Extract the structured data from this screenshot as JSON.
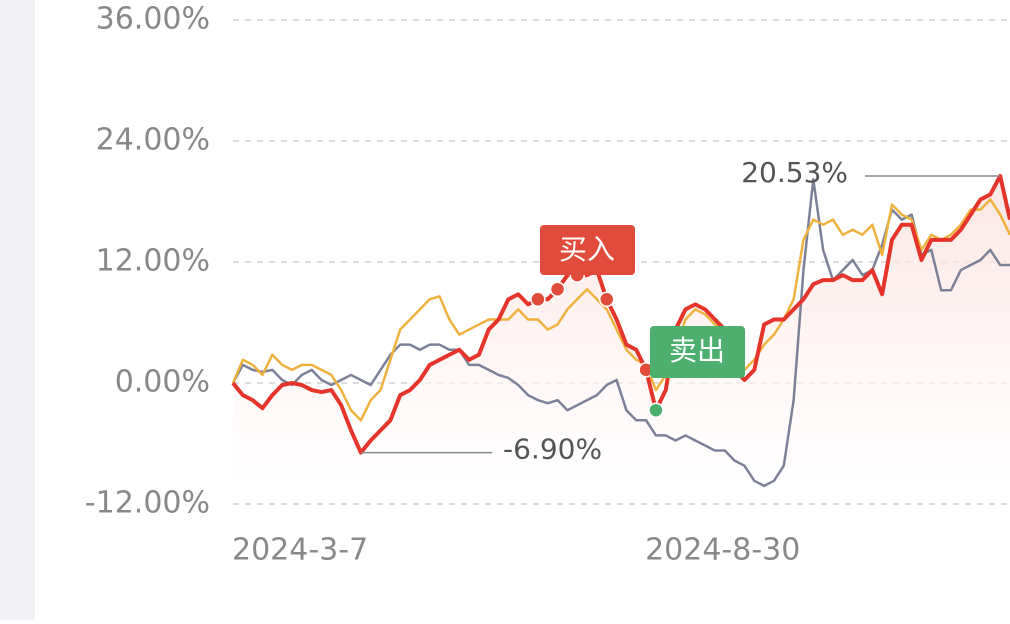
{
  "chart_data": {
    "type": "line",
    "categories": [
      "2024-3-7",
      null,
      null,
      null,
      null,
      null,
      null,
      null,
      null,
      null,
      null,
      null,
      null,
      null,
      null,
      null,
      null,
      null,
      null,
      null,
      null,
      null,
      null,
      null,
      null,
      null,
      null,
      null,
      null,
      null,
      null,
      null,
      null,
      null,
      null,
      null,
      null,
      null,
      null,
      null,
      null,
      null,
      "2024-8-30",
      null,
      null,
      null,
      null,
      null,
      null,
      null,
      null,
      null,
      null,
      null,
      null,
      null,
      null,
      null,
      null,
      null,
      null,
      null,
      null,
      null,
      null,
      null,
      null,
      null,
      null,
      null,
      null,
      null,
      null,
      null,
      null,
      null,
      null,
      null,
      null,
      null
    ],
    "series": [
      {
        "color": "#e5352a",
        "values": [
          0,
          -1.2,
          -1.7,
          -2.5,
          -1.2,
          -0.2,
          0,
          -0.2,
          -0.7,
          -0.9,
          -0.7,
          -2.2,
          -4.7,
          -6.9,
          -5.7,
          -4.7,
          -3.7,
          -1.2,
          -0.7,
          0.3,
          1.8,
          2.3,
          2.8,
          3.3,
          2.3,
          2.8,
          5.3,
          6.3,
          8.3,
          8.8,
          7.8,
          8.3,
          8.3,
          9.3,
          10.7,
          10.7,
          10.7,
          11.2,
          8.3,
          6.3,
          3.8,
          3.3,
          1.3,
          -2.7,
          -0.7,
          5.3,
          7.3,
          7.8,
          7.3,
          6.3,
          5.3,
          1.3,
          0.3,
          1.3,
          5.8,
          6.3,
          6.3,
          7.3,
          8.3,
          9.8,
          10.2,
          10.2,
          10.7,
          10.2,
          10.2,
          11.2,
          8.8,
          14.2,
          15.7,
          15.7,
          12.2,
          14.2,
          14.2,
          14.2,
          15.2,
          16.7,
          18.2,
          18.7,
          20.53,
          16.2
        ]
      },
      {
        "color": "#f0b23f",
        "values": [
          0,
          2.3,
          1.8,
          0.8,
          2.8,
          1.8,
          1.3,
          1.8,
          1.8,
          1.3,
          0.8,
          -0.7,
          -2.7,
          -3.7,
          -1.7,
          -0.7,
          2.3,
          5.3,
          6.3,
          7.3,
          8.3,
          8.6,
          6.3,
          4.8,
          5.3,
          5.8,
          6.3,
          6.3,
          6.3,
          7.3,
          6.3,
          6.3,
          5.3,
          5.8,
          7.3,
          8.3,
          9.3,
          8.3,
          7.3,
          5.3,
          3.3,
          2.3,
          1.8,
          -0.7,
          0.8,
          3.3,
          6.3,
          7.3,
          6.8,
          5.8,
          5.3,
          2.3,
          1.3,
          2.3,
          3.8,
          4.8,
          6.3,
          8.3,
          14.2,
          16.2,
          15.7,
          16.2,
          14.7,
          15.2,
          14.7,
          15.7,
          12.7,
          17.7,
          16.7,
          16.2,
          13.2,
          14.7,
          14.2,
          14.7,
          15.7,
          17.2,
          17.2,
          18.2,
          16.7,
          14.7
        ]
      },
      {
        "color": "#7d8197",
        "values": [
          0,
          1.8,
          1.3,
          1.1,
          1.3,
          0.3,
          -0.2,
          0.8,
          1.3,
          0.3,
          -0.2,
          0.3,
          0.8,
          0.3,
          -0.2,
          1.3,
          2.8,
          3.8,
          3.8,
          3.3,
          3.8,
          3.8,
          3.3,
          3.3,
          1.8,
          1.8,
          1.3,
          0.8,
          0.5,
          -0.2,
          -1.2,
          -1.7,
          -2.0,
          -1.7,
          -2.7,
          -2.2,
          -1.7,
          -1.2,
          -0.2,
          0.3,
          -2.7,
          -3.7,
          -3.7,
          -5.2,
          -5.2,
          -5.7,
          -5.2,
          -5.7,
          -6.2,
          -6.7,
          -6.7,
          -7.7,
          -8.2,
          -9.7,
          -10.2,
          -9.7,
          -8.2,
          -1.7,
          11.2,
          20.2,
          13.2,
          10.2,
          11.2,
          12.2,
          10.7,
          11.2,
          13.7,
          17.2,
          16.2,
          16.7,
          12.7,
          13.2,
          9.2,
          9.2,
          11.2,
          11.7,
          12.2,
          13.2,
          11.7,
          11.7
        ]
      }
    ],
    "ylim": [
      -12,
      36
    ],
    "yticks": [
      {
        "value": -12,
        "label": "-12.00%"
      },
      {
        "value": 0,
        "label": "0.00%"
      },
      {
        "value": 12,
        "label": "12.00%"
      },
      {
        "value": 24,
        "label": "24.00%"
      },
      {
        "value": 36,
        "label": "36.00%"
      }
    ],
    "grid": true,
    "max_label": "20.53%",
    "min_label": "-6.90%",
    "buy_label": "买入",
    "sell_label": "卖出",
    "buy_indices": [
      31,
      33,
      35,
      38,
      42
    ],
    "sell_indices": [
      43
    ]
  }
}
